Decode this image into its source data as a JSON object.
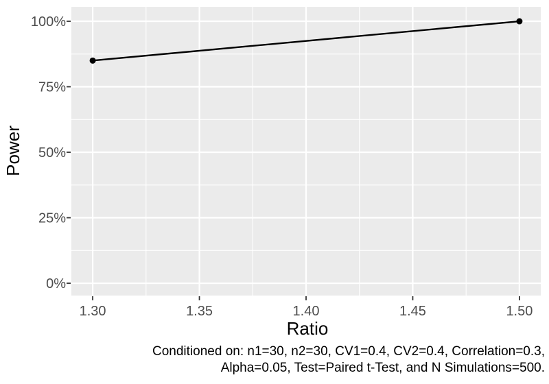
{
  "chart_data": {
    "type": "line",
    "title": "",
    "xlabel": "Ratio",
    "ylabel": "Power",
    "x": [
      1.3,
      1.5
    ],
    "series": [
      {
        "name": "Power",
        "values": [
          0.85,
          1.0
        ]
      }
    ],
    "xlim": [
      1.29,
      1.51
    ],
    "ylim": [
      -0.047,
      1.055
    ],
    "x_ticks": [
      {
        "v": 1.3,
        "label": "1.30"
      },
      {
        "v": 1.35,
        "label": "1.35"
      },
      {
        "v": 1.4,
        "label": "1.40"
      },
      {
        "v": 1.45,
        "label": "1.45"
      },
      {
        "v": 1.5,
        "label": "1.50"
      }
    ],
    "y_ticks": [
      {
        "v": 0.0,
        "label": "0%"
      },
      {
        "v": 0.25,
        "label": "25%"
      },
      {
        "v": 0.5,
        "label": "50%"
      },
      {
        "v": 0.75,
        "label": "75%"
      },
      {
        "v": 1.0,
        "label": "100%"
      }
    ],
    "x_minor_ticks": [
      1.325,
      1.375,
      1.425,
      1.475
    ],
    "y_minor_ticks": [
      0.125,
      0.375,
      0.625,
      0.875
    ],
    "grid": "major-and-minor",
    "legend": "none",
    "caption": [
      "Conditioned on: n1=30, n2=30, CV1=0.4, CV2=0.4, Correlation=0.3,",
      "Alpha=0.05, Test=Paired t-Test, and N Simulations=500."
    ],
    "colors": {
      "background": "#FFFFFF",
      "panel_bg": "#EBEBEB",
      "grid": "#FFFFFF",
      "line": "#000000",
      "point": "#000000",
      "tick_text": "#4D4D4D",
      "tick_mark": "#333333",
      "axis_title": "#000000",
      "caption_text": "#000000"
    }
  }
}
